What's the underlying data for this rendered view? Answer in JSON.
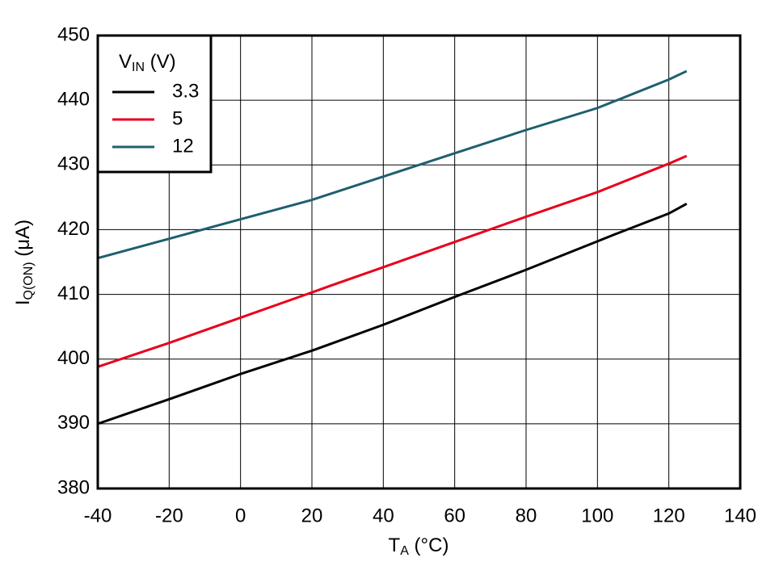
{
  "chart_data": {
    "type": "line",
    "ylabel": [
      "I",
      "Q(ON)",
      " (μA)"
    ],
    "xlabel": [
      "T",
      "A",
      " (°C)"
    ],
    "legend_title": [
      "V",
      "IN",
      " (V)"
    ],
    "legend_position": "upper left",
    "grid": true,
    "x": [
      -40,
      -20,
      0,
      20,
      25,
      40,
      60,
      80,
      100,
      105,
      120,
      125
    ],
    "series": [
      {
        "name": "3.3",
        "color": "#000000",
        "values": [
          390,
          393.8,
          397.7,
          401.3,
          402.3,
          405.3,
          409.6,
          413.8,
          418.2,
          419.3,
          422.5,
          424
        ]
      },
      {
        "name": "5",
        "color": "#e8001c",
        "values": [
          398.8,
          402.5,
          406.4,
          410.3,
          411.3,
          414.2,
          418.1,
          422,
          425.8,
          426.9,
          430.2,
          431.4
        ]
      },
      {
        "name": "12",
        "color": "#1f5f6e",
        "values": [
          415.6,
          418.6,
          421.6,
          424.6,
          425.5,
          428.2,
          431.8,
          435.4,
          438.8,
          439.9,
          443.2,
          444.5
        ]
      }
    ],
    "xlim": [
      -40,
      140
    ],
    "xticks": [
      -40,
      -20,
      0,
      20,
      40,
      60,
      80,
      100,
      120,
      140
    ],
    "ylim": [
      380,
      450
    ],
    "yticks": [
      380,
      390,
      400,
      410,
      420,
      430,
      440,
      450
    ]
  }
}
